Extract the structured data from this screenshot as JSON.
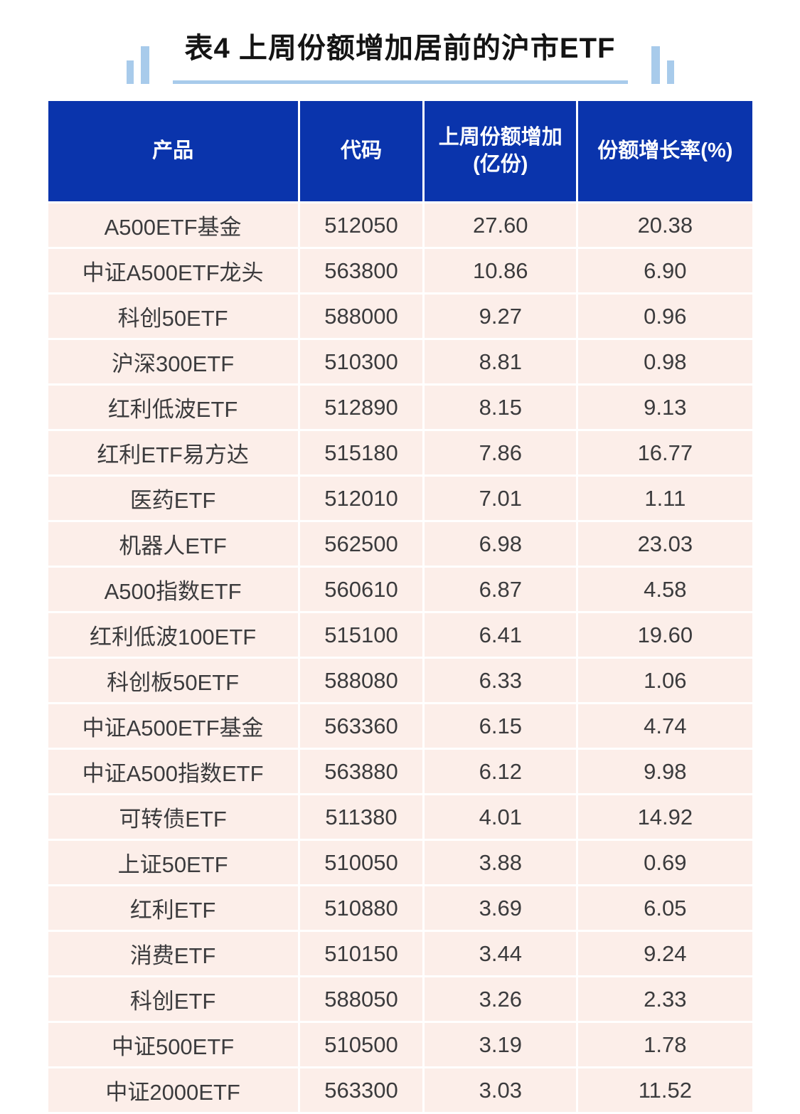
{
  "colors": {
    "header_bg": "#0a34ac",
    "row_bg": "#fceee9",
    "accent_blue": "#a8cbeb",
    "text_dark": "#3b3b3d",
    "header_text": "#ffffff",
    "title_text": "#141414",
    "page_bg": "#ffffff"
  },
  "chart_data": {
    "type": "table",
    "title": "表4 上周份额增加居前的沪市ETF",
    "columns": [
      "产品",
      "代码",
      "上周份额增加(亿份)",
      "份额增长率(%)"
    ],
    "header": [
      {
        "line1": "产品"
      },
      {
        "line1": "代码"
      },
      {
        "line1": "上周份额增加",
        "line2": "(亿份)"
      },
      {
        "line1": "份额增长率(%)"
      }
    ],
    "rows": [
      {
        "product": "A500ETF基金",
        "code": "512050",
        "share_increase": "27.60",
        "growth_rate": "20.38"
      },
      {
        "product": "中证A500ETF龙头",
        "code": "563800",
        "share_increase": "10.86",
        "growth_rate": "6.90"
      },
      {
        "product": "科创50ETF",
        "code": "588000",
        "share_increase": "9.27",
        "growth_rate": "0.96"
      },
      {
        "product": "沪深300ETF",
        "code": "510300",
        "share_increase": "8.81",
        "growth_rate": "0.98"
      },
      {
        "product": "红利低波ETF",
        "code": "512890",
        "share_increase": "8.15",
        "growth_rate": "9.13"
      },
      {
        "product": "红利ETF易方达",
        "code": "515180",
        "share_increase": "7.86",
        "growth_rate": "16.77"
      },
      {
        "product": "医药ETF",
        "code": "512010",
        "share_increase": "7.01",
        "growth_rate": "1.11"
      },
      {
        "product": "机器人ETF",
        "code": "562500",
        "share_increase": "6.98",
        "growth_rate": "23.03"
      },
      {
        "product": "A500指数ETF",
        "code": "560610",
        "share_increase": "6.87",
        "growth_rate": "4.58"
      },
      {
        "product": "红利低波100ETF",
        "code": "515100",
        "share_increase": "6.41",
        "growth_rate": "19.60"
      },
      {
        "product": "科创板50ETF",
        "code": "588080",
        "share_increase": "6.33",
        "growth_rate": "1.06"
      },
      {
        "product": "中证A500ETF基金",
        "code": "563360",
        "share_increase": "6.15",
        "growth_rate": "4.74"
      },
      {
        "product": "中证A500指数ETF",
        "code": "563880",
        "share_increase": "6.12",
        "growth_rate": "9.98"
      },
      {
        "product": "可转债ETF",
        "code": "511380",
        "share_increase": "4.01",
        "growth_rate": "14.92"
      },
      {
        "product": "上证50ETF",
        "code": "510050",
        "share_increase": "3.88",
        "growth_rate": "0.69"
      },
      {
        "product": "红利ETF",
        "code": "510880",
        "share_increase": "3.69",
        "growth_rate": "6.05"
      },
      {
        "product": "消费ETF",
        "code": "510150",
        "share_increase": "3.44",
        "growth_rate": "9.24"
      },
      {
        "product": "科创ETF",
        "code": "588050",
        "share_increase": "3.26",
        "growth_rate": "2.33"
      },
      {
        "product": "中证500ETF",
        "code": "510500",
        "share_increase": "3.19",
        "growth_rate": "1.78"
      },
      {
        "product": "中证2000ETF",
        "code": "563300",
        "share_increase": "3.03",
        "growth_rate": "11.52"
      }
    ]
  }
}
